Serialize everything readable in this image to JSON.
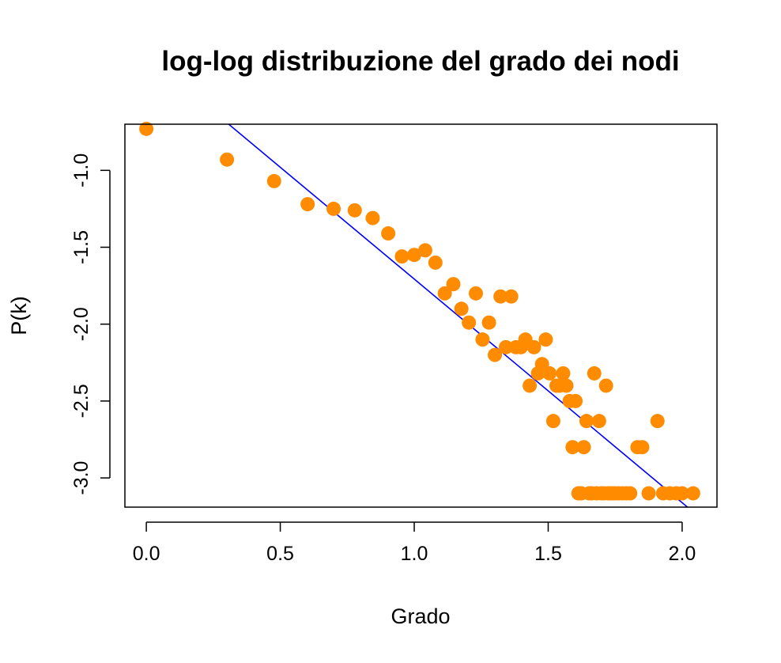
{
  "chart_data": {
    "type": "scatter",
    "title": "log-log distribuzione del grado dei nodi",
    "xlabel": "Grado",
    "ylabel": "P(k)",
    "xlim": [
      -0.08,
      2.13
    ],
    "ylim": [
      -3.19,
      -0.7
    ],
    "x_ticks": [
      0.0,
      0.5,
      1.0,
      1.5,
      2.0
    ],
    "x_tick_labels": [
      "0.0",
      "0.5",
      "1.0",
      "1.5",
      "2.0"
    ],
    "y_ticks": [
      -3.0,
      -2.5,
      -2.0,
      -1.5,
      -1.0
    ],
    "y_tick_labels": [
      "-3.0",
      "-2.5",
      "-2.0",
      "-1.5",
      "-1.0"
    ],
    "grid": false,
    "point_color": "#ff8c00",
    "line_color": "#0000ff",
    "fit_line": {
      "x": [
        0.28,
        2.02
      ],
      "y": [
        -0.66,
        -3.19
      ]
    },
    "series": [
      {
        "x": [
          0.0,
          0.301,
          0.477,
          0.602,
          0.699,
          0.778,
          0.845,
          0.903,
          0.954,
          1.0,
          1.041,
          1.079,
          1.114,
          1.146,
          1.176,
          1.204,
          1.23,
          1.255,
          1.279,
          1.301,
          1.322,
          1.342,
          1.362,
          1.38,
          1.398,
          1.415,
          1.431,
          1.447,
          1.462,
          1.477,
          1.491,
          1.505,
          1.519,
          1.531,
          1.544,
          1.556,
          1.568,
          1.58,
          1.591,
          1.602,
          1.613,
          1.623,
          1.633,
          1.643,
          1.653,
          1.663,
          1.672,
          1.681,
          1.69,
          1.699,
          1.708,
          1.716,
          1.724,
          1.732,
          1.74,
          1.748,
          1.763,
          1.778,
          1.792,
          1.806,
          1.833,
          1.851,
          1.875,
          1.908,
          1.929,
          1.954,
          1.978,
          2.0,
          2.041
        ],
        "y": [
          -0.73,
          -0.93,
          -1.07,
          -1.22,
          -1.25,
          -1.26,
          -1.31,
          -1.41,
          -1.56,
          -1.55,
          -1.52,
          -1.6,
          -1.8,
          -1.74,
          -1.9,
          -1.99,
          -1.8,
          -2.1,
          -1.99,
          -2.2,
          -1.82,
          -2.15,
          -1.82,
          -2.15,
          -2.15,
          -2.1,
          -2.4,
          -2.15,
          -2.32,
          -2.26,
          -2.1,
          -2.32,
          -2.63,
          -2.4,
          -2.4,
          -2.32,
          -2.4,
          -2.5,
          -2.8,
          -2.5,
          -3.1,
          -3.1,
          -2.8,
          -2.63,
          -3.1,
          -3.1,
          -2.32,
          -3.1,
          -2.63,
          -3.1,
          -3.1,
          -2.4,
          -3.1,
          -3.1,
          -3.1,
          -3.1,
          -3.1,
          -3.1,
          -3.1,
          -3.1,
          -2.8,
          -2.8,
          -3.1,
          -2.63,
          -3.1,
          -3.1,
          -3.1,
          -3.1,
          -3.1
        ]
      }
    ]
  }
}
